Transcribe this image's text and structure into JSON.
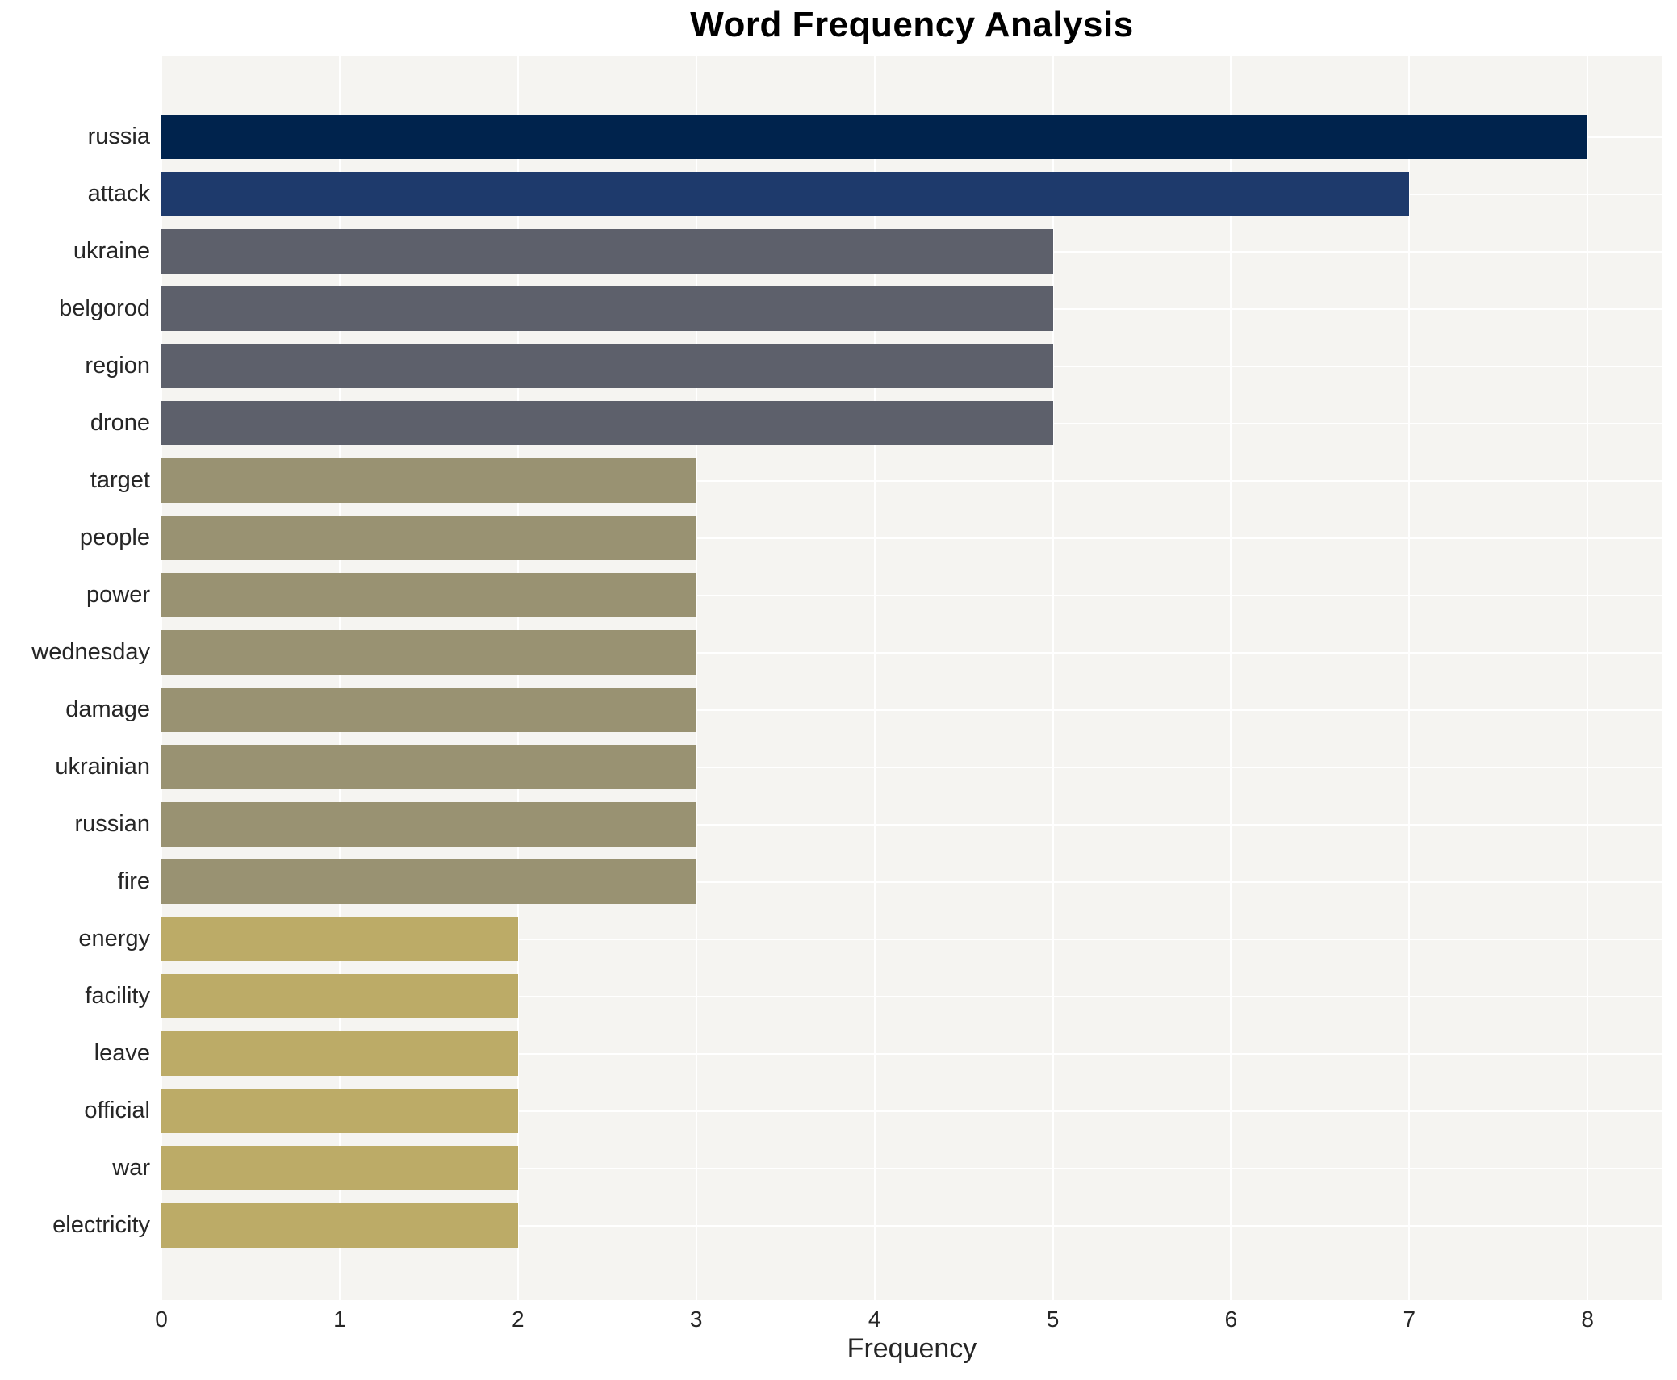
{
  "title": "Word Frequency Analysis",
  "chart_data": {
    "type": "bar",
    "orientation": "horizontal",
    "title": "Word Frequency Analysis",
    "xlabel": "Frequency",
    "ylabel": "",
    "categories": [
      "russia",
      "attack",
      "ukraine",
      "belgorod",
      "region",
      "drone",
      "target",
      "people",
      "power",
      "wednesday",
      "damage",
      "ukrainian",
      "russian",
      "fire",
      "energy",
      "facility",
      "leave",
      "official",
      "war",
      "electricity"
    ],
    "values": [
      8,
      7,
      5,
      5,
      5,
      5,
      3,
      3,
      3,
      3,
      3,
      3,
      3,
      3,
      2,
      2,
      2,
      2,
      2,
      2
    ],
    "xlim": [
      0,
      8.42
    ],
    "xticks": [
      0,
      1,
      2,
      3,
      4,
      5,
      6,
      7,
      8
    ],
    "grid": true,
    "legend": false,
    "bar_colors_by_value": {
      "8": "#00234d",
      "7": "#1e3a6c",
      "5": "#5d606b",
      "3": "#999272",
      "2": "#bcab67"
    }
  },
  "colors": {
    "figure_bg": "#ffffff",
    "plot_bg": "#f5f4f1",
    "grid": "#ffffff",
    "title_text": "#000000",
    "axis_text": "#262626"
  }
}
